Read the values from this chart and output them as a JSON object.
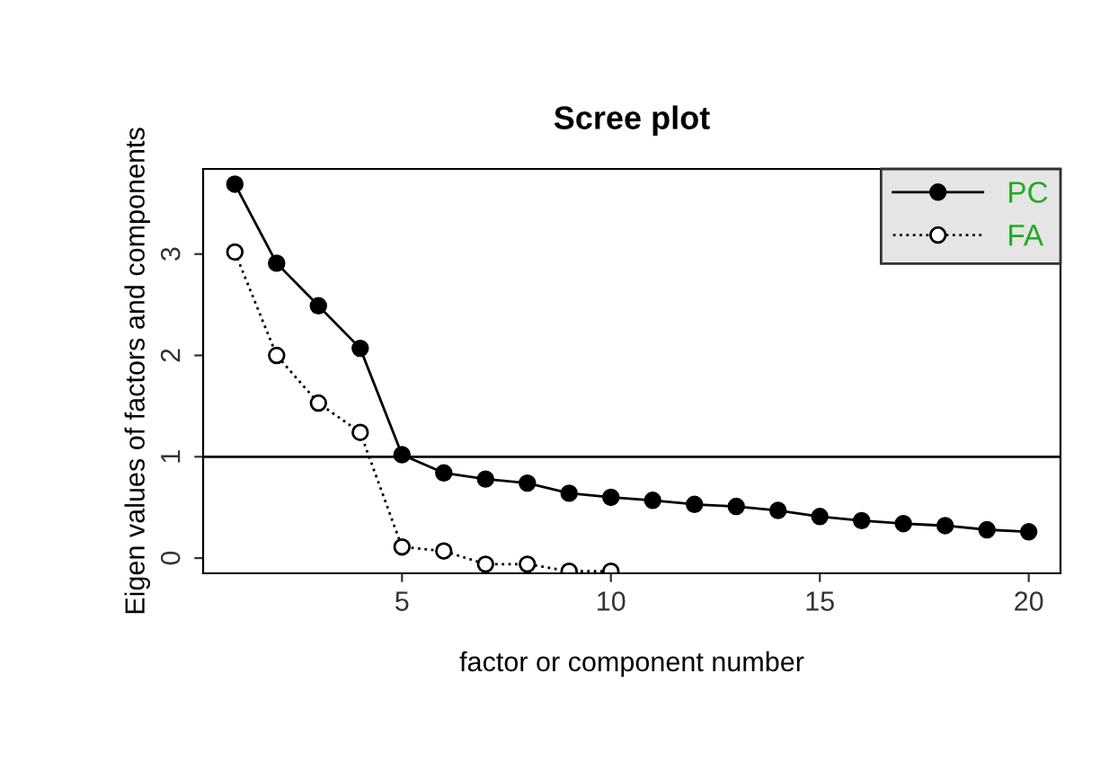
{
  "chart_data": {
    "type": "line",
    "title": "Scree plot",
    "xlabel": "factor or component number",
    "ylabel": "Eigen values of factors and components",
    "x": [
      1,
      2,
      3,
      4,
      5,
      6,
      7,
      8,
      9,
      10,
      11,
      12,
      13,
      14,
      15,
      16,
      17,
      18,
      19,
      20
    ],
    "series": [
      {
        "name": "PC",
        "color": "#000000",
        "marker": "circle",
        "line_style": "solid",
        "values": [
          3.69,
          2.91,
          2.49,
          2.07,
          1.02,
          0.84,
          0.78,
          0.74,
          0.64,
          0.6,
          0.57,
          0.53,
          0.51,
          0.47,
          0.41,
          0.37,
          0.34,
          0.32,
          0.28,
          0.26
        ]
      },
      {
        "name": "FA",
        "color": "#000000",
        "marker": "open circle",
        "line_style": "dotted",
        "values": [
          3.02,
          2.0,
          1.53,
          1.24,
          0.11,
          0.07,
          -0.06,
          -0.06,
          -0.13,
          -0.13,
          null,
          null,
          null,
          null,
          null,
          null,
          null,
          null,
          null,
          null
        ]
      }
    ],
    "xlim": [
      0.24,
      20.76
    ],
    "xticks": [
      5,
      10,
      15,
      20
    ],
    "ylim": [
      -0.15,
      3.84
    ],
    "yticks": [
      0,
      1,
      2,
      3
    ],
    "ref_lines": [
      {
        "axis": "y",
        "value": 1,
        "color": "#000000"
      }
    ],
    "grid": false,
    "legend": "top right"
  }
}
